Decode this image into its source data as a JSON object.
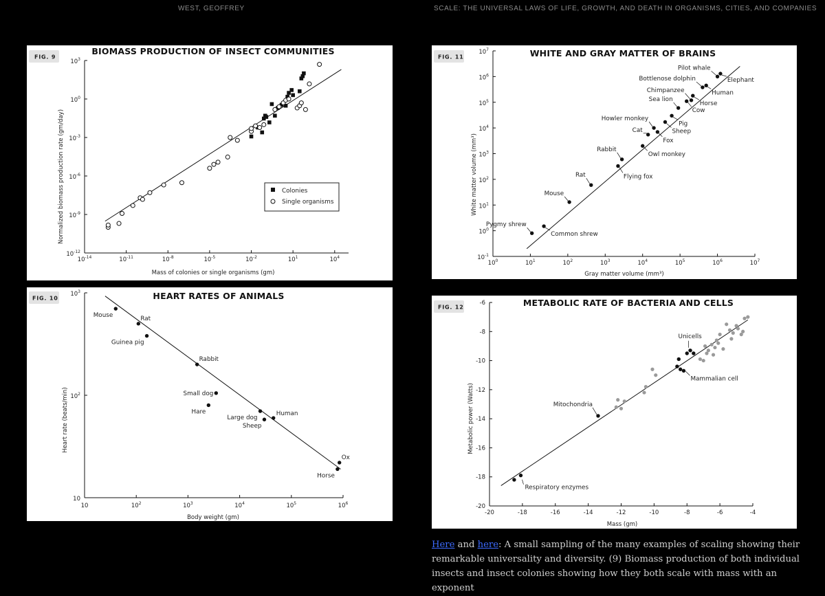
{
  "header": {
    "left": "WEST, GEOFFREY",
    "right": "SCALE: THE UNIVERSAL LAWS OF LIFE, GROWTH, AND DEATH IN ORGANISMS, CITIES, AND COMPANIES"
  },
  "figures": {
    "fig9": {
      "badge": "FIG. 9",
      "title": "BIOMASS PRODUCTION OF INSECT COMMUNITIES",
      "xlabel": "Mass of colonies or single organisms (gm)",
      "ylabel": "Normalized biomass production rate (gm/day)",
      "legend_colonies": "Colonies",
      "legend_single": "Single organisms"
    },
    "fig10": {
      "badge": "FIG. 10",
      "title": "HEART RATES OF ANIMALS",
      "xlabel": "Body weight (gm)",
      "ylabel": "Heart rate (beats/min)"
    },
    "fig11": {
      "badge": "FIG. 11",
      "title": "WHITE AND GRAY MATTER OF BRAINS",
      "xlabel": "Gray matter volume (mm³)",
      "ylabel": "White matter volume (mm³)"
    },
    "fig12": {
      "badge": "FIG. 12",
      "title": "METABOLIC RATE OF BACTERIA AND CELLS",
      "xlabel": "Mass (gm)",
      "ylabel": "Metabolic power (Watts)"
    }
  },
  "caption": {
    "link1": "Here",
    "and": " and ",
    "link2": "here",
    "text": ": A small sampling of the many examples of scaling showing their remarkable universality and diversity. (9) Biomass production of both individual insects and insect colonies showing how they both scale with mass with an exponent"
  },
  "colors": {
    "background": "#000000",
    "panel": "#ffffff",
    "ink": "#111111",
    "gray_points": "#9a9a9a",
    "link": "#3d6bff"
  },
  "chart_data": [
    {
      "id": "fig9",
      "type": "scatter",
      "xscale": "log",
      "yscale": "log",
      "title": "BIOMASS PRODUCTION OF INSECT COMMUNITIES",
      "xlabel": "Mass of colonies or single organisms (gm)",
      "ylabel": "Normalized biomass production rate (gm/day)",
      "xlim": [
        1e-14,
        100000.0
      ],
      "ylim": [
        1e-12,
        1000.0
      ],
      "xticks": [
        {
          "b": "10",
          "e": "-14"
        },
        {
          "b": "10",
          "e": "-11"
        },
        {
          "b": "10",
          "e": "-8"
        },
        {
          "b": "10",
          "e": "-5"
        },
        {
          "b": "10",
          "e": "-2"
        },
        {
          "b": "10",
          "e": "1"
        },
        {
          "b": "10",
          "e": "4"
        }
      ],
      "yticks": [
        {
          "b": "10",
          "e": "-12"
        },
        {
          "b": "10",
          "e": "-9"
        },
        {
          "b": "10",
          "e": "-6"
        },
        {
          "b": "10",
          "e": "-3"
        },
        {
          "b": "10",
          "e": "0"
        },
        {
          "b": "10",
          "e": "3"
        }
      ],
      "legend": "bottom-right",
      "fit": {
        "x": [
          3e-13,
          30000.0
        ],
        "y": [
          3e-10,
          200.0
        ]
      },
      "series": [
        {
          "name": "Colonies",
          "marker": "square",
          "points": [
            [
              0.01,
              0.0012
            ],
            [
              0.03,
              0.006
            ],
            [
              0.06,
              0.0025
            ],
            [
              0.08,
              0.03
            ],
            [
              0.1,
              0.05
            ],
            [
              0.12,
              0.04
            ],
            [
              0.2,
              0.015
            ],
            [
              0.3,
              0.4
            ],
            [
              0.5,
              0.05
            ],
            [
              0.8,
              0.2
            ],
            [
              1.5,
              0.35
            ],
            [
              3,
              0.3
            ],
            [
              4,
              1.5
            ],
            [
              5,
              3
            ],
            [
              8,
              5
            ],
            [
              10,
              2
            ],
            [
              30,
              4
            ],
            [
              50,
              60
            ],
            [
              60,
              100
            ],
            [
              40,
              40
            ]
          ]
        },
        {
          "name": "Single organisms",
          "marker": "circle",
          "points": [
            [
              5e-13,
              1e-10
            ],
            [
              5e-13,
              1.5e-10
            ],
            [
              3e-12,
              2e-10
            ],
            [
              5e-12,
              1.2e-09
            ],
            [
              3e-11,
              5e-09
            ],
            [
              1e-10,
              2e-08
            ],
            [
              1.5e-10,
              1.5e-08
            ],
            [
              5e-10,
              5e-08
            ],
            [
              5e-09,
              2e-07
            ],
            [
              1e-07,
              3e-07
            ],
            [
              1e-05,
              4e-06
            ],
            [
              2e-05,
              8e-06
            ],
            [
              4e-05,
              1.2e-05
            ],
            [
              0.0002,
              3e-05
            ],
            [
              0.0003,
              0.001
            ],
            [
              0.001,
              0.0006
            ],
            [
              0.01,
              0.003
            ],
            [
              0.01,
              0.005
            ],
            [
              0.02,
              0.008
            ],
            [
              0.04,
              0.006
            ],
            [
              0.08,
              0.01
            ],
            [
              0.5,
              0.15
            ],
            [
              1,
              0.25
            ],
            [
              2,
              0.5
            ],
            [
              3,
              0.8
            ],
            [
              5,
              1
            ],
            [
              20,
              0.2
            ],
            [
              30,
              0.3
            ],
            [
              40,
              0.5
            ],
            [
              80,
              0.15
            ],
            [
              150,
              15
            ],
            [
              800,
              500
            ]
          ]
        }
      ]
    },
    {
      "id": "fig10",
      "type": "scatter",
      "xscale": "log",
      "yscale": "log",
      "title": "HEART RATES OF ANIMALS",
      "xlabel": "Body weight (gm)",
      "ylabel": "Heart rate (beats/min)",
      "xlim": [
        10,
        1000000.0
      ],
      "ylim": [
        10,
        1000
      ],
      "xticks": [
        {
          "b": "10",
          "e": ""
        },
        {
          "b": "10",
          "e": "2"
        },
        {
          "b": "10",
          "e": "3"
        },
        {
          "b": "10",
          "e": "4"
        },
        {
          "b": "10",
          "e": "5"
        },
        {
          "b": "10",
          "e": "6"
        }
      ],
      "yticks": [
        {
          "b": "10",
          "e": ""
        },
        {
          "b": "10",
          "e": "2"
        },
        {
          "b": "10",
          "e": "3"
        }
      ],
      "fit": {
        "x": [
          25,
          900000.0
        ],
        "y": [
          930,
          19
        ]
      },
      "points": [
        {
          "label": "Mouse",
          "x": 40,
          "y": 700,
          "pos": "bl"
        },
        {
          "label": "Rat",
          "x": 110,
          "y": 500,
          "pos": "tr"
        },
        {
          "label": "Guinea pig",
          "x": 160,
          "y": 380,
          "pos": "bl"
        },
        {
          "label": "Rabbit",
          "x": 1500,
          "y": 200,
          "pos": "tr"
        },
        {
          "label": "Small dog",
          "x": 3500,
          "y": 105,
          "pos": "l"
        },
        {
          "label": "Hare",
          "x": 2500,
          "y": 80,
          "pos": "bl"
        },
        {
          "label": "Large dog",
          "x": 25000,
          "y": 70,
          "pos": "bl"
        },
        {
          "label": "Sheep",
          "x": 30000,
          "y": 58,
          "pos": "bl"
        },
        {
          "label": "Human",
          "x": 45000,
          "y": 60,
          "pos": "r"
        },
        {
          "label": "Ox",
          "x": 850000,
          "y": 22,
          "pos": "tr"
        },
        {
          "label": "Horse",
          "x": 780000,
          "y": 19,
          "pos": "bl"
        }
      ]
    },
    {
      "id": "fig11",
      "type": "scatter",
      "xscale": "log",
      "yscale": "log",
      "title": "WHITE AND GRAY MATTER OF BRAINS",
      "xlabel": "Gray matter volume (mm³)",
      "ylabel": "White matter volume (mm³)",
      "xlim": [
        1,
        10000000.0
      ],
      "ylim": [
        0.1,
        10000000.0
      ],
      "xticks": [
        {
          "b": "10",
          "e": "0"
        },
        {
          "b": "10",
          "e": "1"
        },
        {
          "b": "10",
          "e": "2"
        },
        {
          "b": "10",
          "e": "3"
        },
        {
          "b": "10",
          "e": "4"
        },
        {
          "b": "10",
          "e": "5"
        },
        {
          "b": "10",
          "e": "6"
        },
        {
          "b": "10",
          "e": "7"
        }
      ],
      "yticks": [
        {
          "b": "10",
          "e": "-1"
        },
        {
          "b": "10",
          "e": "0"
        },
        {
          "b": "10",
          "e": "1"
        },
        {
          "b": "10",
          "e": "2"
        },
        {
          "b": "10",
          "e": "3"
        },
        {
          "b": "10",
          "e": "4"
        },
        {
          "b": "10",
          "e": "5"
        },
        {
          "b": "10",
          "e": "6"
        },
        {
          "b": "10",
          "e": "7"
        }
      ],
      "fit": {
        "x": [
          8,
          4000000.0
        ],
        "y": [
          0.2,
          2500000.0
        ]
      },
      "points": [
        {
          "label": "Pygmy shrew",
          "x": 11,
          "y": 0.8
        },
        {
          "label": "Common shrew",
          "x": 23,
          "y": 1.5
        },
        {
          "label": "Mouse",
          "x": 110,
          "y": 13
        },
        {
          "label": "Rat",
          "x": 420,
          "y": 60
        },
        {
          "label": "Flying fox",
          "x": 2200,
          "y": 330
        },
        {
          "label": "Rabbit",
          "x": 2800,
          "y": 600
        },
        {
          "label": "Owl monkey",
          "x": 10000,
          "y": 2000
        },
        {
          "label": "Fox",
          "x": 25000,
          "y": 7000
        },
        {
          "label": "Cat",
          "x": 14000,
          "y": 5500
        },
        {
          "label": "Howler monkey",
          "x": 20000,
          "y": 10000
        },
        {
          "label": "Sheep",
          "x": 40000,
          "y": 17000
        },
        {
          "label": "Pig",
          "x": 60000,
          "y": 30000
        },
        {
          "label": "Sea lion",
          "x": 90000,
          "y": 60000
        },
        {
          "label": "Cow",
          "x": 150000,
          "y": 110000
        },
        {
          "label": "Horse",
          "x": 220000,
          "y": 180000
        },
        {
          "label": "Chimpanzee",
          "x": 200000,
          "y": 120000
        },
        {
          "label": "Human",
          "x": 500000,
          "y": 450000
        },
        {
          "label": "Bottlenose dolphin",
          "x": 400000,
          "y": 380000
        },
        {
          "label": "Pilot whale",
          "x": 1000000,
          "y": 1000000
        },
        {
          "label": "Elephant",
          "x": 1200000,
          "y": 1300000
        }
      ]
    },
    {
      "id": "fig12",
      "type": "scatter",
      "xscale": "linear",
      "yscale": "linear",
      "title": "METABOLIC RATE OF BACTERIA AND CELLS",
      "xlabel": "Mass (gm)",
      "ylabel": "Metabolic power (Watts)",
      "xlim": [
        -20,
        -4
      ],
      "ylim": [
        -20,
        -6
      ],
      "xticks": [
        "-20",
        "-18",
        "-16",
        "-14",
        "-12",
        "-10",
        "-8",
        "-6",
        "-4"
      ],
      "yticks": [
        "-20",
        "-18",
        "-16",
        "-14",
        "-12",
        "-10",
        "-8",
        "-6"
      ],
      "fit": {
        "x": [
          -19.3,
          -4.3
        ],
        "y": [
          -18.6,
          -7.2
        ]
      },
      "labels": [
        {
          "text": "Respiratory enzymes",
          "x": -18.1,
          "y": -18.0
        },
        {
          "text": "Mitochondria",
          "x": -13.4,
          "y": -13.8
        },
        {
          "text": "Unicells",
          "x": -7.9,
          "y": -9.3
        },
        {
          "text": "Mammalian cell",
          "x": -8.2,
          "y": -10.6
        }
      ],
      "series": [
        {
          "color": "black",
          "points": [
            [
              -18.5,
              -18.2
            ],
            [
              -18.1,
              -17.9
            ],
            [
              -13.4,
              -13.8
            ],
            [
              -8.6,
              -10.4
            ],
            [
              -8.5,
              -9.9
            ],
            [
              -8.4,
              -10.6
            ],
            [
              -8.2,
              -10.7
            ],
            [
              -8.0,
              -9.5
            ],
            [
              -7.8,
              -9.3
            ],
            [
              -7.6,
              -9.5
            ]
          ]
        },
        {
          "color": "gray",
          "points": [
            [
              -12.3,
              -13.2
            ],
            [
              -12.2,
              -12.7
            ],
            [
              -12.0,
              -13.3
            ],
            [
              -11.8,
              -12.8
            ],
            [
              -10.6,
              -12.2
            ],
            [
              -10.5,
              -11.8
            ],
            [
              -10.1,
              -10.6
            ],
            [
              -9.9,
              -11.0
            ],
            [
              -7.2,
              -9.9
            ],
            [
              -7.0,
              -10.0
            ],
            [
              -6.9,
              -9.0
            ],
            [
              -6.8,
              -9.5
            ],
            [
              -6.7,
              -9.3
            ],
            [
              -6.5,
              -8.9
            ],
            [
              -6.4,
              -9.6
            ],
            [
              -6.3,
              -9.1
            ],
            [
              -6.1,
              -8.8
            ],
            [
              -6.0,
              -8.2
            ],
            [
              -5.8,
              -9.2
            ],
            [
              -5.6,
              -7.5
            ],
            [
              -5.4,
              -7.9
            ],
            [
              -5.3,
              -8.5
            ],
            [
              -5.2,
              -8.1
            ],
            [
              -5.0,
              -7.6
            ],
            [
              -4.9,
              -7.8
            ],
            [
              -4.7,
              -8.2
            ],
            [
              -4.5,
              -7.1
            ],
            [
              -4.3,
              -7.0
            ],
            [
              -4.6,
              -8.0
            ],
            [
              -6.2,
              -8.6
            ]
          ]
        }
      ]
    }
  ]
}
